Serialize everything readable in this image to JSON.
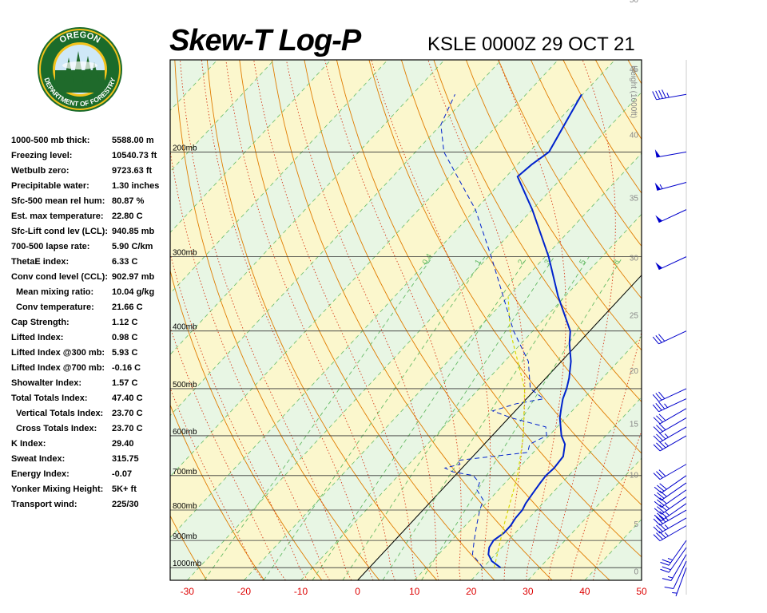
{
  "header": {
    "title": "Skew-T Log-P",
    "station_time": "KSLE 0000Z 29 OCT 21"
  },
  "logo": {
    "top_text": "OREGON",
    "bottom_text": "DEPARTMENT OF FORESTRY",
    "colors": {
      "ring": "#1b6b2a",
      "gold": "#f2c21b",
      "sky": "#cfe8f7",
      "tree": "#1f6a2b"
    }
  },
  "indices": [
    {
      "label": "1000-500 mb thick:",
      "value": "5588.00 m",
      "indent": false
    },
    {
      "label": "Freezing level:",
      "value": "10540.73 ft",
      "indent": false
    },
    {
      "label": "Wetbulb zero:",
      "value": "9723.63 ft",
      "indent": false
    },
    {
      "label": "Precipitable water:",
      "value": "1.30 inches",
      "indent": false
    },
    {
      "label": "Sfc-500 mean rel hum:",
      "value": "80.87 %",
      "indent": false
    },
    {
      "label": "Est. max temperature:",
      "value": "22.80 C",
      "indent": false
    },
    {
      "label": "Sfc-Lift cond lev (LCL):",
      "value": "940.85 mb",
      "indent": false
    },
    {
      "label": "700-500 lapse rate:",
      "value": "5.90 C/km",
      "indent": false
    },
    {
      "label": "ThetaE index:",
      "value": "6.33 C",
      "indent": false
    },
    {
      "label": "Conv cond level (CCL):",
      "value": "902.97 mb",
      "indent": false
    },
    {
      "label": "Mean mixing ratio:",
      "value": "10.04 g/kg",
      "indent": true
    },
    {
      "label": "Conv temperature:",
      "value": "21.66 C",
      "indent": true
    },
    {
      "label": "Cap Strength:",
      "value": "1.12 C",
      "indent": false
    },
    {
      "label": "Lifted Index:",
      "value": "0.98 C",
      "indent": false
    },
    {
      "label": "Lifted Index @300 mb:",
      "value": "5.93 C",
      "indent": false
    },
    {
      "label": "Lifted Index @700 mb:",
      "value": "-0.16 C",
      "indent": false
    },
    {
      "label": "Showalter Index:",
      "value": "1.57 C",
      "indent": false
    },
    {
      "label": "Total Totals Index:",
      "value": "47.40 C",
      "indent": false
    },
    {
      "label": "Vertical Totals Index:",
      "value": "23.70 C",
      "indent": true
    },
    {
      "label": "Cross Totals Index:",
      "value": "23.70 C",
      "indent": true
    },
    {
      "label": "K Index:",
      "value": "29.40",
      "indent": false
    },
    {
      "label": "Sweat Index:",
      "value": "315.75",
      "indent": false
    },
    {
      "label": "Energy Index:",
      "value": "-0.07",
      "indent": false
    },
    {
      "label": "Yonker Mixing Height:",
      "value": "5K+ ft",
      "indent": false
    },
    {
      "label": "Transport wind:",
      "value": "225/30",
      "indent": false
    }
  ],
  "chart_data": {
    "type": "line",
    "xlabel": "",
    "ylabel": "",
    "xlim": [
      -33,
      50
    ],
    "x_ticks": [
      -30,
      -20,
      -10,
      0,
      10,
      20,
      30,
      40,
      50
    ],
    "x_tick_labels": [
      "-30",
      "-20",
      "-10",
      "0",
      "10",
      "20",
      "30",
      "40",
      "50"
    ],
    "pressure_range_mb": [
      1050,
      140
    ],
    "pressure_levels": [
      1000,
      900,
      800,
      700,
      600,
      500,
      400,
      300,
      200
    ],
    "pressure_labels": [
      "1000mb",
      "900mb",
      "800mb",
      "700mb",
      "600mb",
      "500mb",
      "400mb",
      "300mb",
      "200mb"
    ],
    "height_axis_label": "Height (1000ft)",
    "height_ticks": [
      0,
      5,
      10,
      15,
      20,
      25,
      30,
      35,
      40,
      45,
      50
    ],
    "height_tick_labels": [
      "0",
      "5",
      "10",
      "15",
      "20",
      "25",
      "30",
      "35",
      "40",
      "45",
      "50"
    ],
    "mixing_ratio_lines": [
      0.4,
      1,
      2,
      3,
      5,
      8
    ],
    "mixing_ratio_labels": [
      "0.4",
      "1",
      "2",
      "3",
      "5",
      "8"
    ],
    "grid": true,
    "series": [
      {
        "role": "temperature",
        "color": "#0022cc",
        "points": [
          [
            1000,
            23.1
          ],
          [
            975,
            20.5
          ],
          [
            950,
            18.8
          ],
          [
            925,
            17.8
          ],
          [
            900,
            17.4
          ],
          [
            875,
            18.0
          ],
          [
            850,
            18.0
          ],
          [
            825,
            17.6
          ],
          [
            800,
            17.5
          ],
          [
            780,
            17.0
          ],
          [
            750,
            16.6
          ],
          [
            720,
            16.2
          ],
          [
            700,
            16.0
          ],
          [
            680,
            16.2
          ],
          [
            650,
            15.9
          ],
          [
            620,
            14.2
          ],
          [
            600,
            12.2
          ],
          [
            560,
            9.0
          ],
          [
            540,
            7.7
          ],
          [
            520,
            6.4
          ],
          [
            500,
            5.4
          ],
          [
            480,
            4.1
          ],
          [
            450,
            1.7
          ],
          [
            420,
            -1.5
          ],
          [
            400,
            -3.4
          ],
          [
            350,
            -11.2
          ],
          [
            300,
            -19.4
          ],
          [
            250,
            -30.0
          ],
          [
            220,
            -38.0
          ],
          [
            210,
            -37.5
          ],
          [
            200,
            -36.5
          ],
          [
            160,
            -40.2
          ]
        ]
      },
      {
        "role": "dewpoint",
        "color": "#0022cc",
        "points": [
          [
            1000,
            20.0
          ],
          [
            950,
            16.0
          ],
          [
            900,
            14.0
          ],
          [
            850,
            12.0
          ],
          [
            800,
            10.0
          ],
          [
            770,
            9.0
          ],
          [
            740,
            6.2
          ],
          [
            720,
            5.5
          ],
          [
            700,
            3.2
          ],
          [
            690,
            -1.0
          ],
          [
            680,
            -3.0
          ],
          [
            670,
            -1.0
          ],
          [
            660,
            -2.0
          ],
          [
            640,
            9.0
          ],
          [
            620,
            8.0
          ],
          [
            600,
            9.6
          ],
          [
            580,
            8.0
          ],
          [
            560,
            0.5
          ],
          [
            545,
            -4.0
          ],
          [
            530,
            -1.0
          ],
          [
            520,
            3.0
          ],
          [
            500,
            -1.0
          ],
          [
            450,
            -5.8
          ],
          [
            400,
            -13.4
          ],
          [
            300,
            -29.5
          ],
          [
            250,
            -40.0
          ],
          [
            200,
            -55.0
          ],
          [
            180,
            -60.0
          ],
          [
            160,
            -62.5
          ]
        ]
      },
      {
        "role": "parcel",
        "color": "#d8d800",
        "points": [
          [
            1000,
            22.0
          ],
          [
            940,
            20.0
          ],
          [
            850,
            16.8
          ],
          [
            700,
            11.0
          ],
          [
            600,
            5.5
          ],
          [
            500,
            -2.0
          ],
          [
            400,
            -14.0
          ],
          [
            350,
            -20.0
          ]
        ]
      }
    ],
    "wind_barbs": [
      {
        "p": 1000,
        "dir": 200,
        "speed": 5
      },
      {
        "p": 975,
        "dir": 205,
        "speed": 10
      },
      {
        "p": 950,
        "dir": 210,
        "speed": 15
      },
      {
        "p": 925,
        "dir": 215,
        "speed": 20
      },
      {
        "p": 900,
        "dir": 215,
        "speed": 25
      },
      {
        "p": 850,
        "dir": 240,
        "speed": 35
      },
      {
        "p": 825,
        "dir": 240,
        "speed": 35
      },
      {
        "p": 800,
        "dir": 240,
        "speed": 35
      },
      {
        "p": 780,
        "dir": 235,
        "speed": 35
      },
      {
        "p": 760,
        "dir": 235,
        "speed": 35
      },
      {
        "p": 740,
        "dir": 235,
        "speed": 30
      },
      {
        "p": 720,
        "dir": 235,
        "speed": 30
      },
      {
        "p": 700,
        "dir": 235,
        "speed": 30
      },
      {
        "p": 670,
        "dir": 240,
        "speed": 30
      },
      {
        "p": 600,
        "dir": 240,
        "speed": 35
      },
      {
        "p": 580,
        "dir": 240,
        "speed": 35
      },
      {
        "p": 560,
        "dir": 240,
        "speed": 30
      },
      {
        "p": 540,
        "dir": 240,
        "speed": 30
      },
      {
        "p": 520,
        "dir": 245,
        "speed": 35
      },
      {
        "p": 500,
        "dir": 245,
        "speed": 30
      },
      {
        "p": 400,
        "dir": 245,
        "speed": 30
      },
      {
        "p": 300,
        "dir": 245,
        "speed": 50
      },
      {
        "p": 250,
        "dir": 245,
        "speed": 50
      },
      {
        "p": 225,
        "dir": 255,
        "speed": 55
      },
      {
        "p": 200,
        "dir": 260,
        "speed": 50
      },
      {
        "p": 160,
        "dir": 260,
        "speed": 45
      }
    ]
  },
  "colors": {
    "plot_bg": "#e8f6e4",
    "band": "#fbf7cd",
    "isobar": "#333333",
    "dry_adiabat": "#e07c00",
    "moist_adiabat": "#d63a1a",
    "mixing_ratio": "#66bb66",
    "isotherm": "#66bb66",
    "freezing": "#000000",
    "x_tick_label": "#dd0000",
    "height_label": "#888888"
  }
}
